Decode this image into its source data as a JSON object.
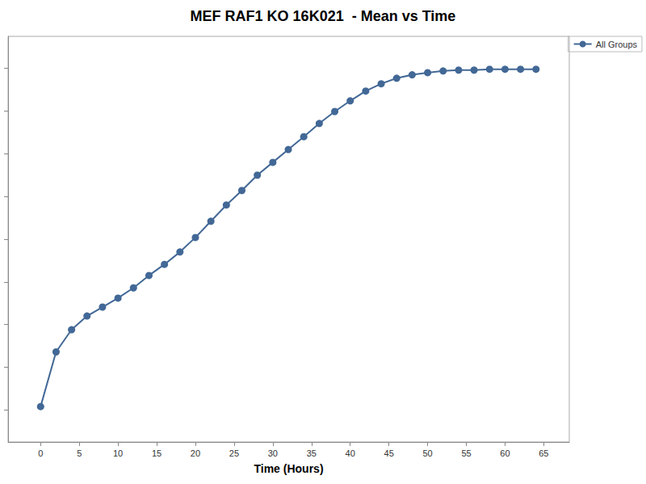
{
  "chart_data": {
    "type": "line",
    "title": "MEF RAF1 KO 16K021  - Mean vs Time",
    "x_label": "Time (Hours)",
    "x": [
      0,
      2,
      4,
      6,
      8,
      10,
      12,
      14,
      16,
      18,
      20,
      22,
      24,
      26,
      28,
      30,
      32,
      34,
      36,
      38,
      40,
      42,
      44,
      46,
      48,
      50,
      52,
      54,
      56,
      58,
      60,
      62,
      64
    ],
    "series": [
      {
        "name": "All Groups",
        "color": "#426896",
        "marker": "circle",
        "line_style": "solid",
        "values": [
          1.08,
          2.36,
          2.88,
          3.2,
          3.41,
          3.62,
          3.86,
          4.15,
          4.41,
          4.7,
          5.04,
          5.42,
          5.8,
          6.14,
          6.5,
          6.8,
          7.1,
          7.4,
          7.71,
          7.99,
          8.24,
          8.47,
          8.64,
          8.77,
          8.85,
          8.9,
          8.94,
          8.96,
          8.96,
          8.98,
          8.98,
          8.98,
          8.98
        ]
      }
    ],
    "xlim": [
      -4.2,
      68.3
    ],
    "xticks": [
      0,
      5,
      10,
      15,
      20,
      25,
      30,
      35,
      40,
      45,
      50,
      55,
      60,
      65
    ],
    "ylim": [
      0.25,
      9.75
    ],
    "yticks": [
      1,
      2,
      3,
      4,
      5,
      6,
      7,
      8,
      9
    ],
    "grid": false,
    "legend": "top-right",
    "tick_labels": "x"
  }
}
